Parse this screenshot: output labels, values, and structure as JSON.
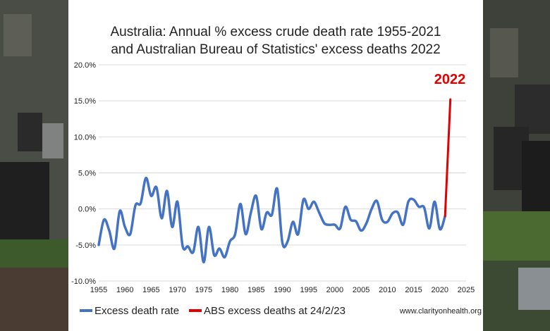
{
  "title_lines": [
    "Australia: Annual % excess crude death rate 1955-2021",
    "and Australian Bureau of Statistics' excess deaths 2022"
  ],
  "source_text": "www.clarityonhealth.org",
  "annotation": "2022",
  "colors": {
    "series_blue": "#4472c4",
    "series_red": "#e00000",
    "grid": "#d9d9d9"
  },
  "chart_data": {
    "type": "line",
    "xlim": [
      1955,
      2025
    ],
    "ylim": [
      -10,
      20
    ],
    "x_ticks": [
      1955,
      1960,
      1965,
      1970,
      1975,
      1980,
      1985,
      1990,
      1995,
      2000,
      2005,
      2010,
      2015,
      2020,
      2025
    ],
    "y_ticks": [
      {
        "value": -10,
        "label": "-10.0%"
      },
      {
        "value": -5,
        "label": "-5.0%"
      },
      {
        "value": 0,
        "label": "0.0%"
      },
      {
        "value": 5,
        "label": "5.0%"
      },
      {
        "value": 10,
        "label": "10.0%"
      },
      {
        "value": 15,
        "label": "15.0%"
      },
      {
        "value": 20,
        "label": "20.0%"
      }
    ],
    "grid": "horizontal",
    "legend_position": "bottom",
    "series": [
      {
        "name": "Excess death rate",
        "color": "#4472c4",
        "x": [
          1955,
          1956,
          1957,
          1958,
          1959,
          1960,
          1961,
          1962,
          1963,
          1964,
          1965,
          1966,
          1967,
          1968,
          1969,
          1970,
          1971,
          1972,
          1973,
          1974,
          1975,
          1976,
          1977,
          1978,
          1979,
          1980,
          1981,
          1982,
          1983,
          1984,
          1985,
          1986,
          1987,
          1988,
          1989,
          1990,
          1991,
          1992,
          1993,
          1994,
          1995,
          1996,
          1997,
          1998,
          1999,
          2000,
          2001,
          2002,
          2003,
          2004,
          2005,
          2006,
          2007,
          2008,
          2009,
          2010,
          2011,
          2012,
          2013,
          2014,
          2015,
          2016,
          2017,
          2018,
          2019,
          2020,
          2021
        ],
        "y": [
          -5.0,
          -1.5,
          -3.0,
          -5.5,
          -0.3,
          -2.5,
          -3.5,
          0.5,
          0.8,
          4.3,
          1.8,
          3.0,
          -1.3,
          2.5,
          -2.5,
          1.0,
          -5.2,
          -5.2,
          -6.0,
          -2.5,
          -7.4,
          -2.5,
          -6.4,
          -5.5,
          -6.7,
          -4.5,
          -3.5,
          0.7,
          -3.5,
          -0.5,
          1.8,
          -2.8,
          -0.5,
          -0.8,
          2.8,
          -4.7,
          -4.5,
          -1.8,
          -3.5,
          1.3,
          0.0,
          1.0,
          -0.5,
          -2.0,
          -2.2,
          -2.2,
          -2.7,
          0.3,
          -1.5,
          -1.7,
          -3.0,
          -2.0,
          0.0,
          1.1,
          -1.5,
          -1.8,
          -0.6,
          -0.5,
          -2.2,
          1.0,
          1.3,
          0.3,
          0.2,
          -2.7,
          1.0,
          -2.8,
          -1.0
        ]
      },
      {
        "name": "ABS excess deaths at 24/2/23",
        "color": "#e00000",
        "x": [
          2021,
          2022
        ],
        "y": [
          -1.0,
          15.2
        ]
      }
    ]
  }
}
